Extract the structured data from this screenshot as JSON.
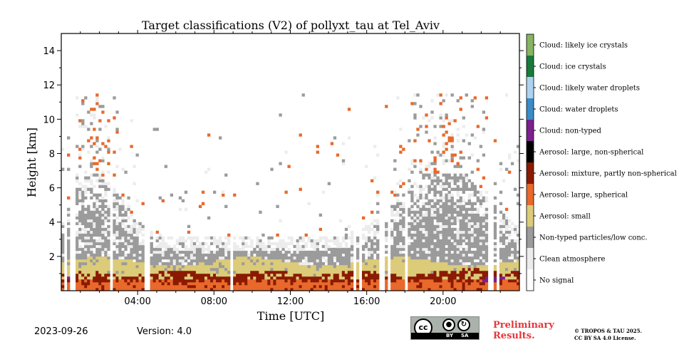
{
  "chart_data": {
    "type": "heatmap",
    "title": "Target classifications (V2) of pollyxt_tau at Tel_Aviv",
    "xlabel": "Time [UTC]",
    "ylabel": "Height [km]",
    "xlim_hours": [
      0,
      24
    ],
    "ylim_km": [
      0,
      15
    ],
    "x_ticks": [
      {
        "hour": 4,
        "label": "04:00"
      },
      {
        "hour": 8,
        "label": "08:00"
      },
      {
        "hour": 12,
        "label": "12:00"
      },
      {
        "hour": 16,
        "label": "16:00"
      },
      {
        "hour": 20,
        "label": "20:00"
      }
    ],
    "y_ticks": [
      {
        "km": 2,
        "label": "2"
      },
      {
        "km": 4,
        "label": "4"
      },
      {
        "km": 6,
        "label": "6"
      },
      {
        "km": 8,
        "label": "8"
      },
      {
        "km": 10,
        "label": "10"
      },
      {
        "km": 12,
        "label": "12"
      },
      {
        "km": 14,
        "label": "14"
      }
    ],
    "classes": [
      {
        "label": "No signal",
        "color": "#ffffff"
      },
      {
        "label": "Clean atmosphere",
        "color": "#ececec"
      },
      {
        "label": "Non-typed particles/low conc.",
        "color": "#9b9b9b"
      },
      {
        "label": "Aerosol: small",
        "color": "#dccb78"
      },
      {
        "label": "Aerosol: large, spherical",
        "color": "#e8692b"
      },
      {
        "label": "Aerosol: mixture, partly non-spherical",
        "color": "#8b1a02"
      },
      {
        "label": "Aerosol: large, non-spherical",
        "color": "#000000"
      },
      {
        "label": "Cloud: non-typed",
        "color": "#7b208d"
      },
      {
        "label": "Cloud: water droplets",
        "color": "#3a8cc9"
      },
      {
        "label": "Cloud: likely water droplets",
        "color": "#aed3f0"
      },
      {
        "label": "Cloud: ice crystals",
        "color": "#1a7a3c"
      },
      {
        "label": "Cloud: likely ice crystals",
        "color": "#86b462"
      }
    ],
    "layers": [
      {
        "class": "Aerosol: large, spherical",
        "from_km": 0.0,
        "to_km": 0.7
      },
      {
        "class": "Aerosol: mixture, partly non-spherical",
        "from_km": 0.5,
        "to_km": 1.1
      },
      {
        "class": "Aerosol: small",
        "from_km": 1.0,
        "to_km": 1.8
      },
      {
        "class": "Non-typed particles/low conc.",
        "from_km": 1.6,
        "to_km": 4.5
      },
      {
        "class": "Clean atmosphere",
        "from_km": 1.8,
        "to_km": 6.0
      },
      {
        "class": "Aerosol: large, spherical",
        "from_km": 4.0,
        "to_km": 11.5
      }
    ],
    "signal_gaps_hours": [
      0.25,
      0.5,
      0.7,
      2.6,
      4.5,
      8.9,
      15.4,
      15.7,
      16.8,
      17.2,
      18.1,
      22.5,
      22.9
    ]
  },
  "footer": {
    "date": "2023-09-26",
    "version": "Version: 4.0",
    "preliminary_line1": "Preliminary",
    "preliminary_line2": "Results.",
    "copyright_line1": "© TROPOS & TAU 2025.",
    "copyright_line2": "CC BY SA 4.0 License.",
    "cc_main": "cc",
    "cc_by": "BY",
    "cc_sa": "SA"
  }
}
